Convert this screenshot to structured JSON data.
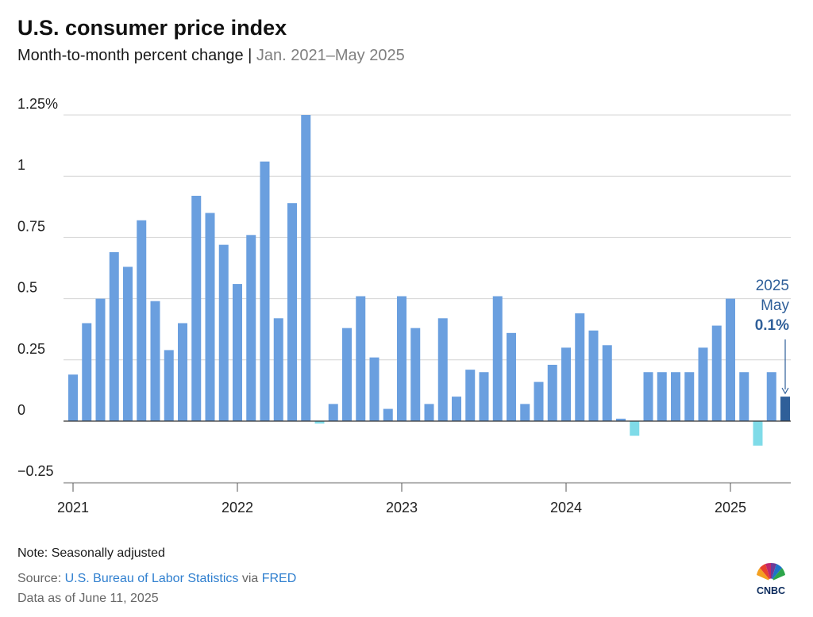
{
  "header": {
    "title": "U.S. consumer price index",
    "subtitle_main": "Month-to-month percent change",
    "subtitle_sep": " | ",
    "subtitle_range": "Jan. 2021–May 2025"
  },
  "footer": {
    "note": "Note: Seasonally adjusted",
    "source_prefix": "Source: ",
    "source_link1": "U.S. Bureau of Labor Statistics",
    "source_mid": " via ",
    "source_link2": "FRED",
    "as_of": "Data as of June 11, 2025",
    "logo_text": "CNBC"
  },
  "colors": {
    "bar": "#6a9fdf",
    "negative_bar": "#7fdbe8",
    "highlight_bar": "#2f5f99",
    "annotation": "#2f5f99",
    "grid": "#d4d4d4",
    "axis": "#333333"
  },
  "chart_data": {
    "type": "bar",
    "title": "U.S. consumer price index",
    "subtitle": "Month-to-month percent change | Jan. 2021–May 2025",
    "xlabel": "",
    "ylabel": "",
    "ylim": [
      -0.25,
      1.25
    ],
    "yticks": [
      -0.25,
      0,
      0.25,
      0.5,
      0.75,
      1,
      1.25
    ],
    "ytick_labels": [
      "−0.25",
      "0",
      "0.25",
      "0.5",
      "0.75",
      "1",
      "1.25%"
    ],
    "xtick_labels": [
      "2021",
      "2022",
      "2023",
      "2024",
      "2025"
    ],
    "grid": true,
    "legend": "none",
    "start_year": 2021,
    "start_month": 1,
    "values": [
      0.19,
      0.4,
      0.5,
      0.69,
      0.63,
      0.82,
      0.49,
      0.29,
      0.4,
      0.92,
      0.85,
      0.72,
      0.56,
      0.76,
      1.06,
      0.42,
      0.89,
      1.25,
      -0.01,
      0.07,
      0.38,
      0.51,
      0.26,
      0.05,
      0.51,
      0.38,
      0.07,
      0.42,
      0.1,
      0.21,
      0.2,
      0.51,
      0.36,
      0.07,
      0.16,
      0.23,
      0.3,
      0.44,
      0.37,
      0.31,
      0.01,
      -0.06,
      0.2,
      0.2,
      0.2,
      0.2,
      0.3,
      0.39,
      0.5,
      0.2,
      -0.1,
      0.2,
      0.1
    ],
    "highlight_index": 52,
    "annotation": {
      "line1": "2025",
      "line2": "May",
      "value": "0.1%"
    }
  }
}
